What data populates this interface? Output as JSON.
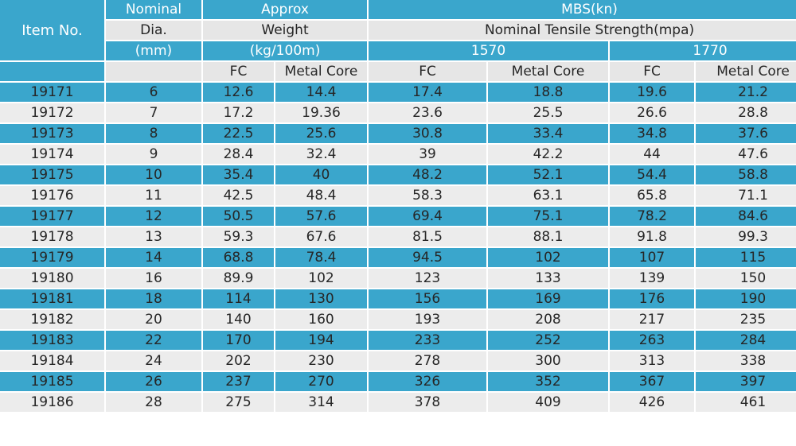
{
  "header": {
    "item_no": "Item No.",
    "nominal": "Nominal",
    "dia": "Dia.",
    "mm": "(mm)",
    "approx": "Approx",
    "weight": "Weight",
    "kg": "(kg/100m)",
    "mbs": "MBS(kn)",
    "tensile": "Nominal Tensile Strength(mpa)",
    "s1570": "1570",
    "s1770": "1770",
    "fc": "FC",
    "metal_core": "Metal Core"
  },
  "rows": [
    [
      "19171",
      "6",
      "12.6",
      "14.4",
      "17.4",
      "18.8",
      "19.6",
      "21.2"
    ],
    [
      "19172",
      "7",
      "17.2",
      "19.36",
      "23.6",
      "25.5",
      "26.6",
      "28.8"
    ],
    [
      "19173",
      "8",
      "22.5",
      "25.6",
      "30.8",
      "33.4",
      "34.8",
      "37.6"
    ],
    [
      "19174",
      "9",
      "28.4",
      "32.4",
      "39",
      "42.2",
      "44",
      "47.6"
    ],
    [
      "19175",
      "10",
      "35.4",
      "40",
      "48.2",
      "52.1",
      "54.4",
      "58.8"
    ],
    [
      "19176",
      "11",
      "42.5",
      "48.4",
      "58.3",
      "63.1",
      "65.8",
      "71.1"
    ],
    [
      "19177",
      "12",
      "50.5",
      "57.6",
      "69.4",
      "75.1",
      "78.2",
      "84.6"
    ],
    [
      "19178",
      "13",
      "59.3",
      "67.6",
      "81.5",
      "88.1",
      "91.8",
      "99.3"
    ],
    [
      "19179",
      "14",
      "68.8",
      "78.4",
      "94.5",
      "102",
      "107",
      "115"
    ],
    [
      "19180",
      "16",
      "89.9",
      "102",
      "123",
      "133",
      "139",
      "150"
    ],
    [
      "19181",
      "18",
      "114",
      "130",
      "156",
      "169",
      "176",
      "190"
    ],
    [
      "19182",
      "20",
      "140",
      "160",
      "193",
      "208",
      "217",
      "235"
    ],
    [
      "19183",
      "22",
      "170",
      "194",
      "233",
      "252",
      "263",
      "284"
    ],
    [
      "19184",
      "24",
      "202",
      "230",
      "278",
      "300",
      "313",
      "338"
    ],
    [
      "19185",
      "26",
      "237",
      "270",
      "326",
      "352",
      "367",
      "397"
    ],
    [
      "19186",
      "28",
      "275",
      "314",
      "378",
      "409",
      "426",
      "461"
    ]
  ],
  "colors": {
    "header_blue": "#3aa6cc",
    "header_gray": "#e6e6e6",
    "row_gray": "#ececec"
  }
}
